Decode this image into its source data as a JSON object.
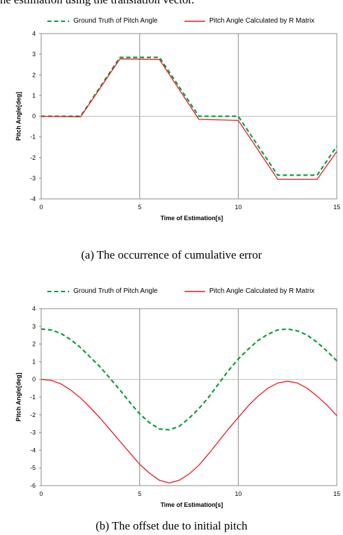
{
  "header_fragment": "he estimation using the translation vector.",
  "colors": {
    "ground_truth": "#0a9a3c",
    "calculated": "#e8141c",
    "grid": "#888888",
    "zero_line": "#bdbdbd"
  },
  "chart_data": [
    {
      "type": "line",
      "caption": "(a) The occurrence of cumulative error",
      "xlabel": "Time of Estimation[s]",
      "ylabel": "Pitch Angle[deg]",
      "xlim": [
        0,
        15
      ],
      "ylim": [
        -4,
        4
      ],
      "xticks": [
        0,
        5,
        10,
        15
      ],
      "yticks": [
        4,
        3,
        2,
        1,
        0,
        -1,
        -2,
        -3,
        -4
      ],
      "grid": "vertical",
      "legend_position": "top",
      "series": [
        {
          "name": "Ground Truth of Pitch Angle",
          "style": "dashed",
          "x": [
            0,
            2,
            4,
            6,
            8,
            10,
            12,
            14,
            15
          ],
          "y": [
            0,
            0,
            2.85,
            2.85,
            0,
            0,
            -2.85,
            -2.85,
            -1.45
          ]
        },
        {
          "name": "Pitch Angle Calculated by R Matrix",
          "style": "solid",
          "x": [
            0,
            2,
            4,
            6,
            8,
            10,
            12,
            14,
            15
          ],
          "y": [
            0,
            -0.03,
            2.78,
            2.75,
            -0.15,
            -0.2,
            -3.05,
            -3.05,
            -1.7
          ]
        }
      ]
    },
    {
      "type": "line",
      "caption": "(b) The offset due to initial pitch",
      "xlabel": "Time of Estimation[s]",
      "ylabel": "Pitch Angle[deg]",
      "xlim": [
        0,
        15
      ],
      "ylim": [
        -6,
        4
      ],
      "xticks": [
        0,
        5,
        10,
        15
      ],
      "yticks": [
        4,
        3,
        2,
        1,
        0,
        -1,
        -2,
        -3,
        -4,
        -5,
        -6
      ],
      "grid": "vertical",
      "legend_position": "top",
      "series": [
        {
          "name": "Ground Truth of Pitch Angle",
          "style": "dashed",
          "x": [
            0,
            0.5,
            1,
            1.5,
            2,
            2.5,
            3,
            3.5,
            4,
            4.5,
            5,
            5.5,
            6,
            6.5,
            7,
            7.5,
            8,
            8.5,
            9,
            9.5,
            10,
            10.5,
            11,
            11.5,
            12,
            12.5,
            13,
            13.5,
            14,
            14.5,
            15
          ],
          "y": [
            2.85,
            2.8,
            2.6,
            2.25,
            1.8,
            1.25,
            0.7,
            0.05,
            -0.6,
            -1.3,
            -1.95,
            -2.45,
            -2.8,
            -2.85,
            -2.65,
            -2.2,
            -1.65,
            -1.0,
            -0.25,
            0.5,
            1.15,
            1.7,
            2.2,
            2.55,
            2.8,
            2.85,
            2.75,
            2.5,
            2.1,
            1.6,
            1.05
          ]
        },
        {
          "name": "Pitch Angle Calculated by R Matrix",
          "style": "solid",
          "x": [
            0,
            0.5,
            1,
            1.5,
            2,
            2.5,
            3,
            3.5,
            4,
            4.5,
            5,
            5.5,
            6,
            6.5,
            7,
            7.5,
            8,
            8.5,
            9,
            9.5,
            10,
            10.5,
            11,
            11.5,
            12,
            12.5,
            13,
            13.5,
            14,
            14.5,
            15
          ],
          "y": [
            0,
            -0.05,
            -0.25,
            -0.6,
            -1.05,
            -1.6,
            -2.2,
            -2.85,
            -3.5,
            -4.15,
            -4.8,
            -5.3,
            -5.7,
            -5.85,
            -5.7,
            -5.35,
            -4.85,
            -4.2,
            -3.5,
            -2.8,
            -2.15,
            -1.5,
            -0.95,
            -0.5,
            -0.2,
            -0.1,
            -0.2,
            -0.5,
            -0.95,
            -1.45,
            -2.05
          ]
        }
      ]
    }
  ]
}
